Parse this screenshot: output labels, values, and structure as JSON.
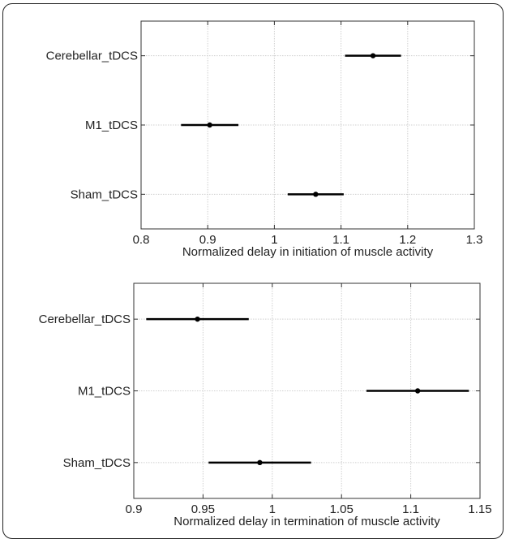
{
  "chart_data": [
    {
      "type": "scatter",
      "style": "error-bar interval plot",
      "title": "",
      "xlabel": "Normalized delay in initiation of muscle activity",
      "ylabel": "",
      "xlim": [
        0.8,
        1.3
      ],
      "xticks": [
        0.8,
        0.9,
        1.0,
        1.1,
        1.2,
        1.3
      ],
      "xtick_labels": [
        "0.8",
        "0.9",
        "1",
        "1.1",
        "1.2",
        "1.3"
      ],
      "categories": [
        "Cerebellar_tDCS",
        "M1_tDCS",
        "Sham_tDCS"
      ],
      "means": [
        1.148,
        0.903,
        1.062
      ],
      "lower": [
        1.106,
        0.86,
        1.02
      ],
      "upper": [
        1.19,
        0.946,
        1.104
      ],
      "grid": true,
      "legend": "none"
    },
    {
      "type": "scatter",
      "style": "error-bar interval plot",
      "title": "",
      "xlabel": "Normalized delay in termination of muscle activity",
      "ylabel": "",
      "xlim": [
        0.9,
        1.15
      ],
      "xticks": [
        0.9,
        0.95,
        1.0,
        1.05,
        1.1,
        1.15
      ],
      "xtick_labels": [
        "0.9",
        "0.95",
        "1",
        "1.05",
        "1.1",
        "1.15"
      ],
      "categories": [
        "Cerebellar_tDCS",
        "M1_tDCS",
        "Sham_tDCS"
      ],
      "means": [
        0.946,
        1.105,
        0.991
      ],
      "lower": [
        0.909,
        1.068,
        0.954
      ],
      "upper": [
        0.983,
        1.142,
        1.028
      ],
      "grid": true,
      "legend": "none"
    }
  ]
}
